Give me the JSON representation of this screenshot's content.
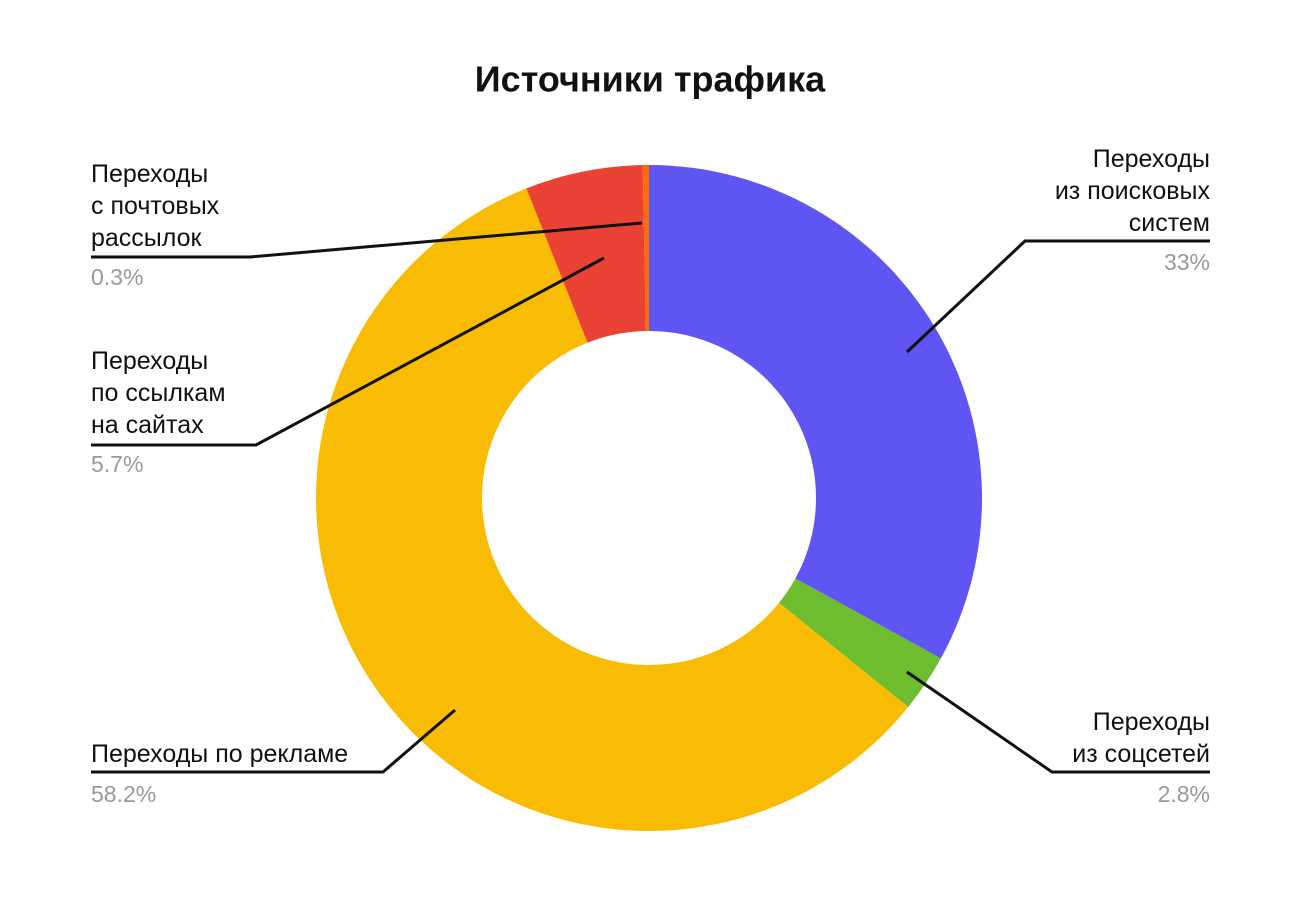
{
  "chart_data": {
    "type": "donut",
    "title": "Источники трафика",
    "categories": [
      "Переходы\nиз поисковых\nсистем",
      "Переходы\nиз соцсетей",
      "Переходы по рекламе",
      "Переходы\nпо ссылкам\nна сайтах",
      "Переходы\nс почтовых\nрассылок"
    ],
    "values": [
      33,
      2.8,
      58.2,
      5.7,
      0.3
    ],
    "value_labels": [
      "33%",
      "2.8%",
      "58.2%",
      "5.7%",
      "0.3%"
    ],
    "colors": [
      "#5f55f2",
      "#6dbd2f",
      "#f9bc05",
      "#ea4335",
      "#ff6d00"
    ]
  }
}
